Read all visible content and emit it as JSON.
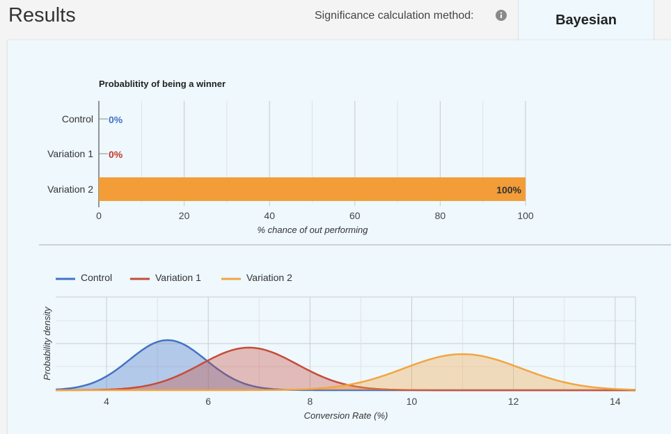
{
  "header": {
    "title": "Results",
    "method_label": "Significance calculation method:",
    "method_value": "Bayesian"
  },
  "chart_data": [
    {
      "type": "bar",
      "orientation": "horizontal",
      "title": "Probablitity of being a winner",
      "categories": [
        "Control",
        "Variation 1",
        "Variation 2"
      ],
      "values": [
        0,
        0,
        100
      ],
      "value_labels": [
        "0%",
        "0%",
        "100%"
      ],
      "colors": [
        "#4472c4",
        "#c0392b",
        "#f29d38"
      ],
      "xlabel": "% chance of out performing",
      "xlim": [
        0,
        100
      ],
      "xticks": [
        0,
        20,
        40,
        60,
        80,
        100
      ]
    },
    {
      "type": "area",
      "ylabel": "Probability density",
      "xlabel": "Conversion Rate (%)",
      "xlim": [
        3,
        14.4
      ],
      "xticks": [
        4,
        6,
        8,
        10,
        12,
        14
      ],
      "legend": "top-left",
      "series": [
        {
          "name": "Control",
          "color": "#4472c4",
          "mean": 5.2,
          "sd": 0.75,
          "peak": 1.0
        },
        {
          "name": "Variation 1",
          "color": "#c64b38",
          "mean": 6.8,
          "sd": 0.95,
          "peak": 0.85
        },
        {
          "name": "Variation 2",
          "color": "#f2a541",
          "mean": 11.0,
          "sd": 1.15,
          "peak": 0.72
        }
      ]
    }
  ]
}
